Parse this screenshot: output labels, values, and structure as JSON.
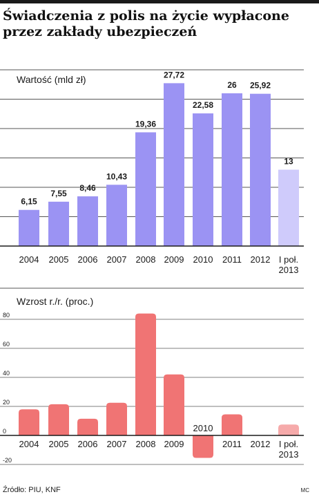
{
  "title": "Świadczenia z polis na życie wypłacone przez zakłady ubezpieczeń",
  "colors": {
    "bar_main": "#9b93f3",
    "bar_partial": "#cfcbfb",
    "growth_main": "#f07474",
    "growth_partial": "#f6aaaa",
    "grid": "#555555"
  },
  "chart_data": [
    {
      "type": "bar",
      "ylabel": "Wartość (mld zł)",
      "categories": [
        "2004",
        "2005",
        "2006",
        "2007",
        "2008",
        "2009",
        "2010",
        "2011",
        "2012",
        "I poł.\n2013"
      ],
      "values": [
        6.15,
        7.55,
        8.46,
        10.43,
        19.36,
        27.72,
        22.58,
        26,
        25.92,
        13
      ],
      "data_labels": [
        "6,15",
        "7,55",
        "8,46",
        "10,43",
        "19,36",
        "27,72",
        "22,58",
        "26",
        "25,92",
        "13"
      ],
      "ylim": [
        0,
        28
      ],
      "grid": true
    },
    {
      "type": "bar",
      "ylabel": "Wzrost r./r. (proc.)",
      "categories": [
        "2004",
        "2005",
        "2006",
        "2007",
        "2008",
        "2009",
        "2010",
        "2011",
        "2012",
        "I poł.\n2013"
      ],
      "values": [
        18,
        21.5,
        11.5,
        22.5,
        84,
        42,
        -15.5,
        14.5,
        0,
        7.5
      ],
      "yticks": [
        "-20",
        "0",
        "20",
        "40",
        "60",
        "80"
      ],
      "ylim": [
        -20,
        90
      ],
      "grid": true
    }
  ],
  "footer": {
    "source": "Źródło: PIU, KNF",
    "author": "MC"
  }
}
